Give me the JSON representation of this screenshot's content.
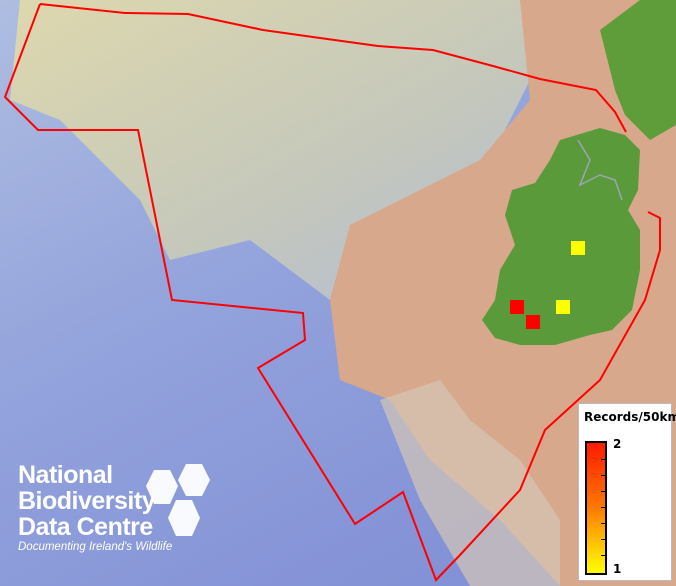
{
  "legend": {
    "title": "Records/50km",
    "max_label": "2",
    "min_label": "1",
    "color_max": "#ff1a00",
    "color_min": "#ffff00"
  },
  "logo": {
    "line1": "National",
    "line2": "Biodiversity",
    "line3": "Data Centre",
    "tagline": "Documenting Ireland's Wildlife"
  },
  "records": [
    {
      "value": 1,
      "color": "#ffff00"
    },
    {
      "value": 2,
      "color": "#ff0000"
    },
    {
      "value": 2,
      "color": "#ff0000"
    },
    {
      "value": 1,
      "color": "#ffff00"
    }
  ],
  "colors": {
    "boundary": "#ff0000",
    "land": "#5a9a3a",
    "shelf": "#d9a98a",
    "deep_sea": "#8f9fd8"
  }
}
